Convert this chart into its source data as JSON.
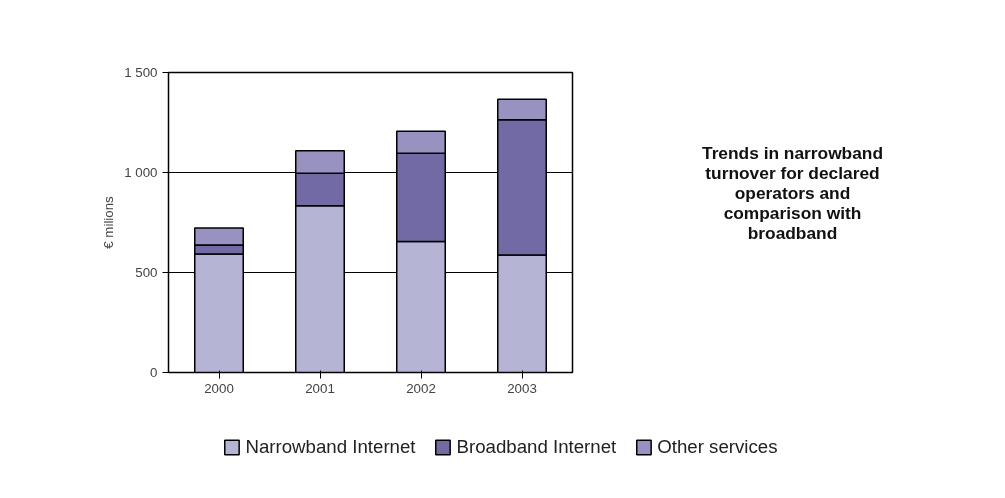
{
  "chart_data": {
    "type": "bar",
    "stacked": true,
    "title": "Trends in narrowband turnover for declared operators and comparison with broadband",
    "ylabel": "€ milions",
    "categories": [
      "2000",
      "2001",
      "2002",
      "2003"
    ],
    "series": [
      {
        "name": "Narrowband Internet",
        "color": "#b6b4d4",
        "values": [
          593,
          834,
          655,
          587
        ]
      },
      {
        "name": "Broadband Internet",
        "color": "#726aa4",
        "values": [
          45,
          162,
          441,
          677
        ]
      },
      {
        "name": "Other services",
        "color": "#9892c0",
        "values": [
          85,
          113,
          110,
          102
        ]
      }
    ],
    "ylim": [
      0,
      1500
    ],
    "yticks": [
      0,
      500,
      {
        "value": 1000,
        "label": "1 000"
      },
      {
        "value": 1500,
        "label": "1 500"
      }
    ],
    "grid": "y",
    "legend": "bottom"
  }
}
